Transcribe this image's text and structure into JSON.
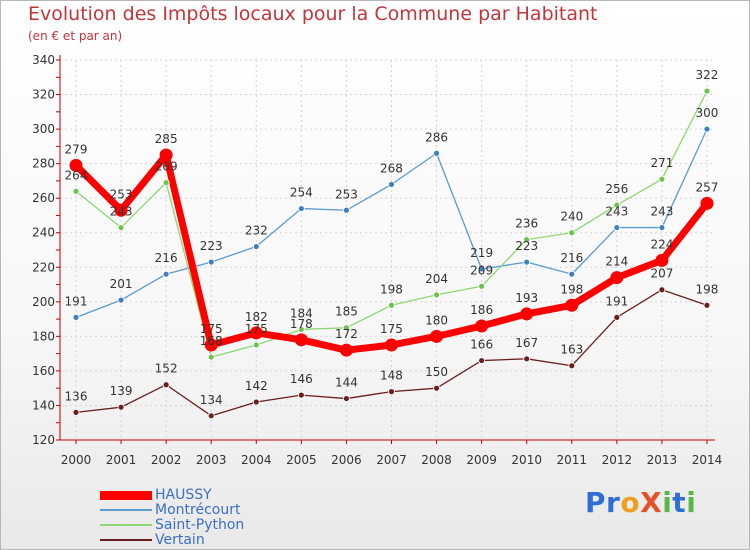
{
  "title": "Evolution des Impôts locaux pour la Commune par Habitant",
  "subtitle": "(en € et par an)",
  "logo": {
    "text": "ProXiti",
    "letters": [
      "P",
      "r",
      "o",
      "X",
      "i",
      "t",
      "i"
    ],
    "colors": [
      "#2f6fd4",
      "#2f6fd4",
      "#f0a020",
      "#e8502a",
      "#56b947",
      "#2f6fd4",
      "#56b947"
    ]
  },
  "chart_data": {
    "type": "line",
    "x": [
      "2000",
      "2001",
      "2002",
      "2003",
      "2004",
      "2005",
      "2006",
      "2007",
      "2008",
      "2009",
      "2010",
      "2011",
      "2012",
      "2013",
      "2014"
    ],
    "ylim": [
      120,
      340
    ],
    "yticks": [
      120,
      140,
      160,
      180,
      200,
      220,
      240,
      260,
      280,
      300,
      320,
      340
    ],
    "grid": true,
    "legend_position": "bottom-left",
    "series": [
      {
        "name": "Vertain",
        "color": "#6b1e1e",
        "marker": "#6b1e1e",
        "values": [
          136,
          139,
          152,
          134,
          142,
          146,
          144,
          148,
          150,
          166,
          167,
          163,
          191,
          207,
          198
        ]
      },
      {
        "name": "Montrécourt",
        "color": "#5a9bd0",
        "marker": "#3f7fc0",
        "values": [
          191,
          201,
          216,
          223,
          232,
          254,
          253,
          268,
          286,
          219,
          223,
          216,
          243,
          243,
          300
        ]
      },
      {
        "name": "Saint-Python",
        "color": "#8cd870",
        "marker": "#6cc24a",
        "values": [
          264,
          243,
          269,
          168,
          175,
          184,
          185,
          198,
          204,
          209,
          236,
          240,
          256,
          271,
          322
        ]
      },
      {
        "name": "HAUSSY",
        "color": "#ff0000",
        "marker": "#ff0000",
        "values": [
          279,
          253,
          285,
          175,
          182,
          178,
          172,
          175,
          180,
          186,
          193,
          198,
          214,
          224,
          257
        ]
      }
    ],
    "legend_order": [
      "HAUSSY",
      "Montrécourt",
      "Saint-Python",
      "Vertain"
    ]
  }
}
